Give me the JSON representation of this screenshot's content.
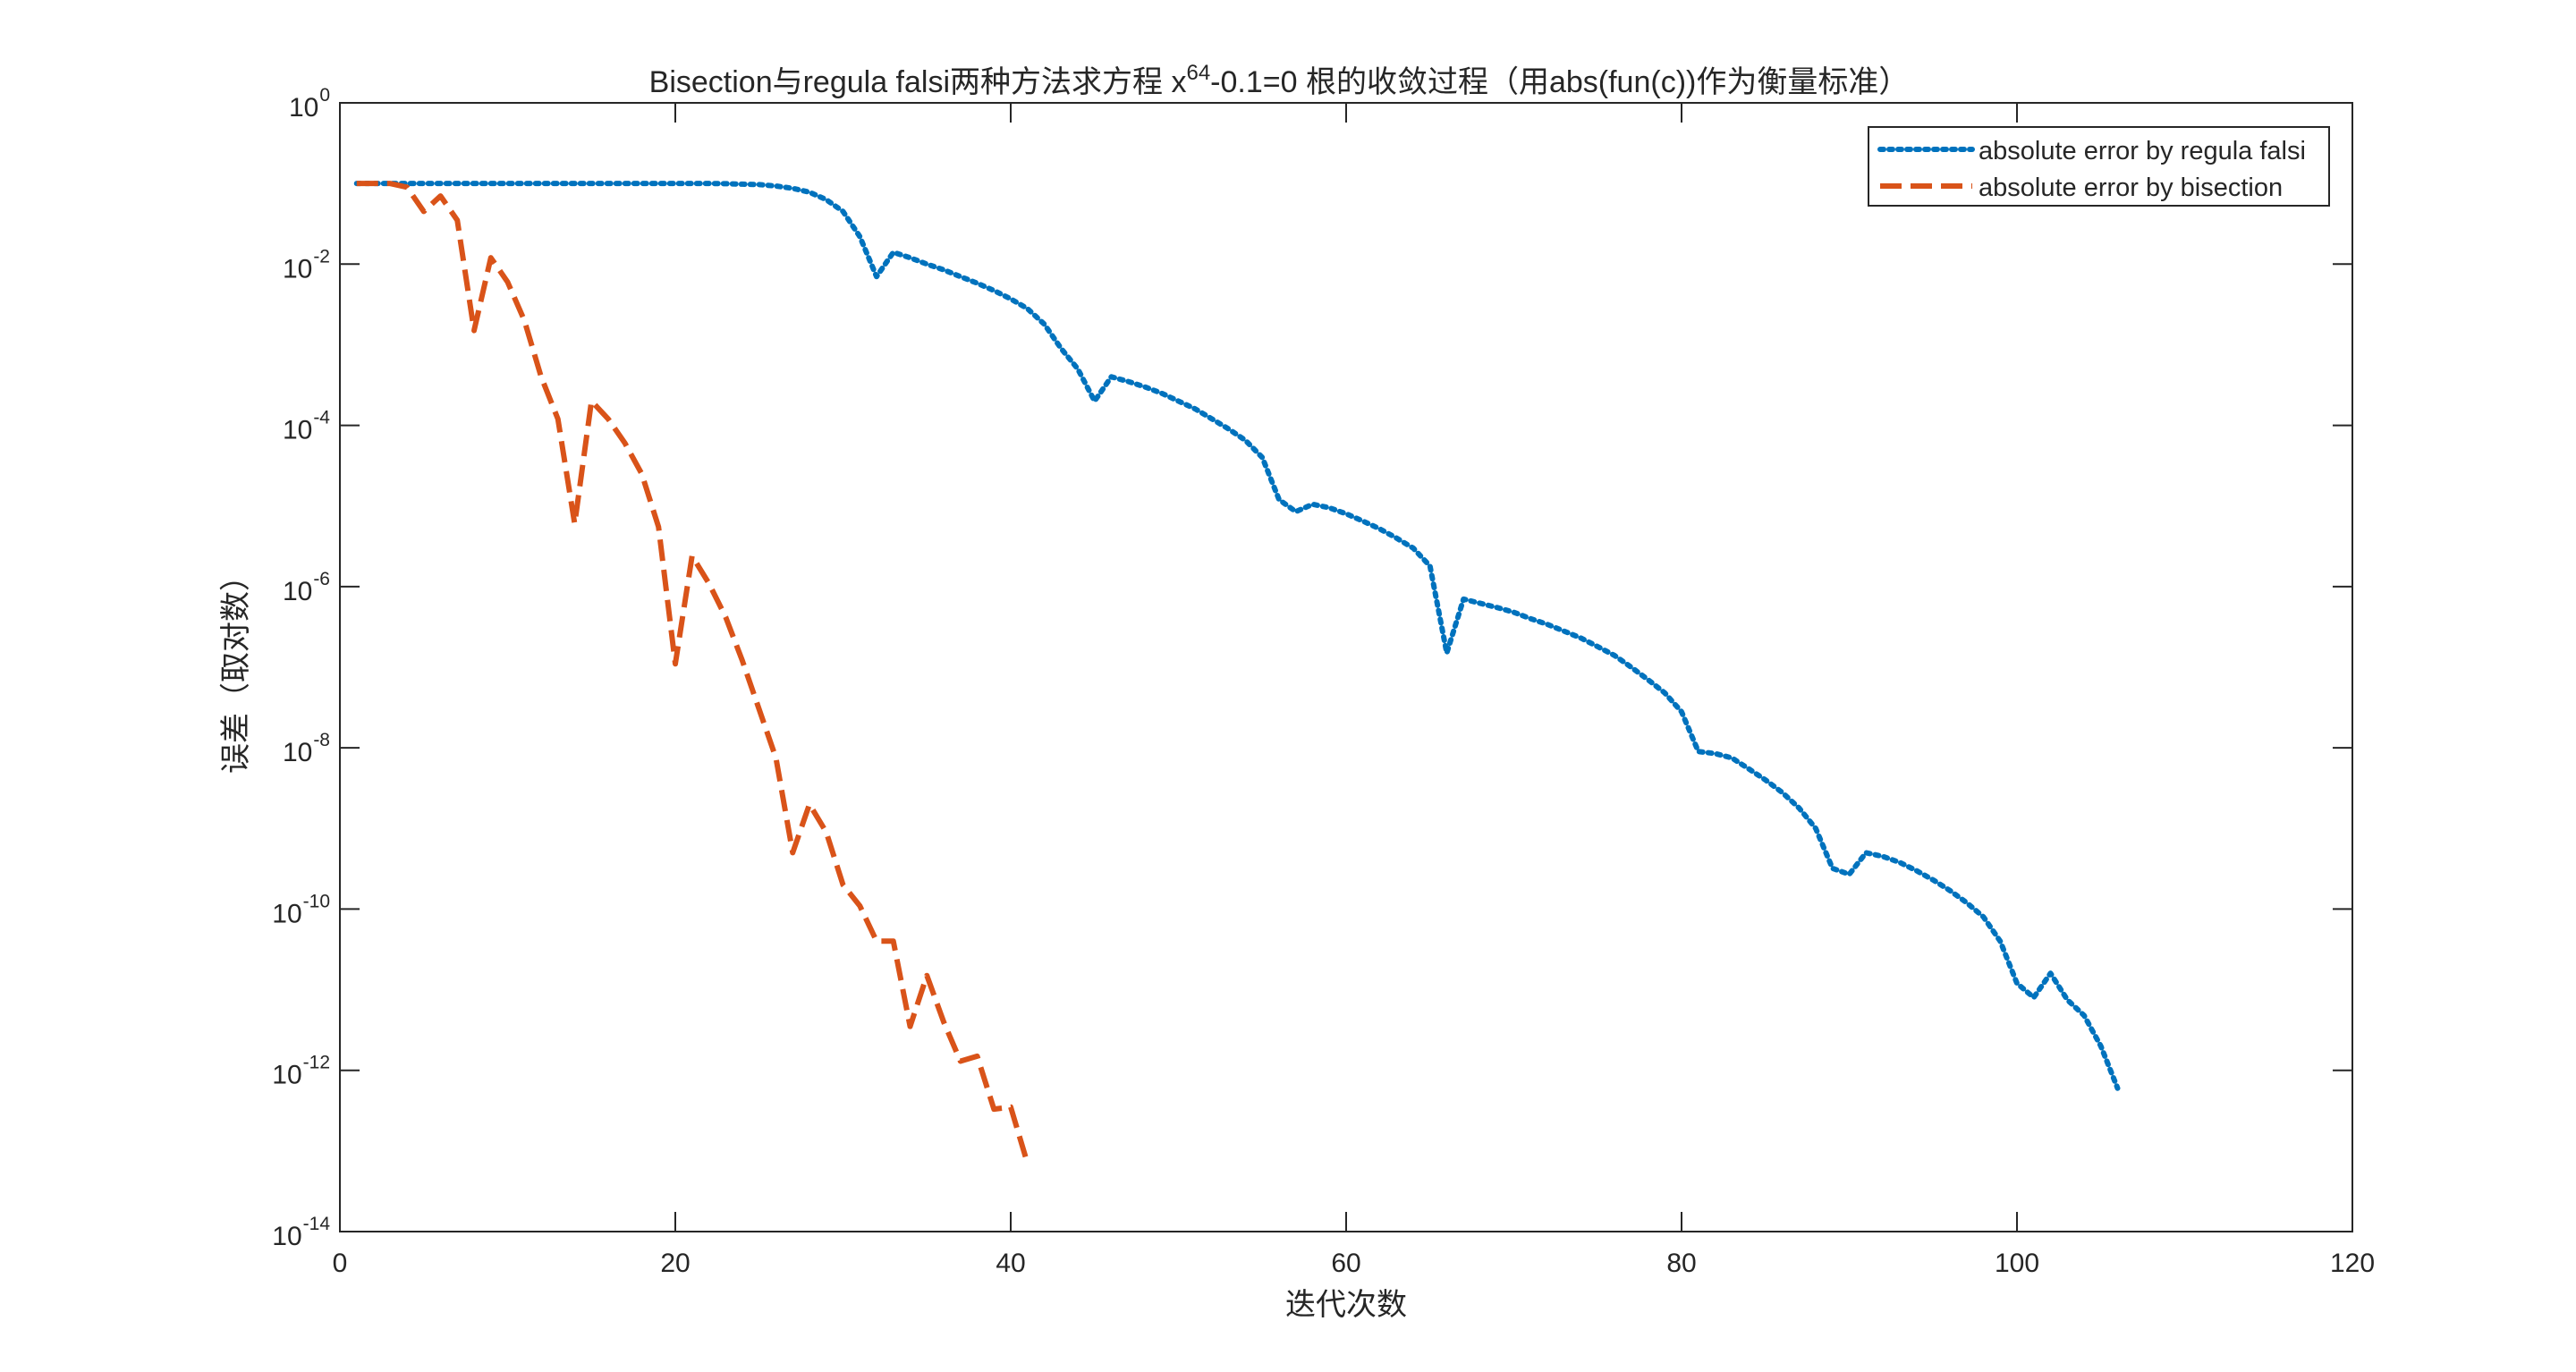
{
  "chart_data": {
    "type": "line",
    "title_prefix": "Bisection与regula falsi两种方法求方程 x",
    "title_exponent": "64",
    "title_suffix": "-0.1=0 根的收敛过程（用abs(fun(c))作为衡量标准）",
    "xlabel": "迭代次数",
    "ylabel": "误差（取对数）",
    "xlim": [
      0,
      120
    ],
    "ylim": [
      1e-14,
      1
    ],
    "yscale": "log",
    "grid": false,
    "legend_position": "top-right",
    "x_ticks": [
      0,
      20,
      40,
      60,
      80,
      100,
      120
    ],
    "y_tick_base": "10",
    "y_tick_exponents": [
      "0",
      "-2",
      "-4",
      "-6",
      "-8",
      "-10",
      "-12",
      "-14"
    ],
    "series": [
      {
        "name": "absolute error by regula falsi",
        "color": "#0072BD",
        "line_style": "dotted",
        "x": [
          1,
          2,
          3,
          4,
          5,
          6,
          7,
          8,
          9,
          10,
          11,
          12,
          13,
          14,
          15,
          16,
          17,
          18,
          19,
          20,
          21,
          22,
          23,
          24,
          25,
          26,
          27,
          28,
          29,
          30,
          31,
          32,
          33,
          34,
          35,
          36,
          37,
          38,
          39,
          40,
          41,
          42,
          43,
          44,
          45,
          46,
          47,
          48,
          49,
          50,
          51,
          52,
          53,
          54,
          55,
          56,
          57,
          58,
          59,
          60,
          61,
          62,
          63,
          64,
          65,
          66,
          67,
          68,
          69,
          70,
          71,
          72,
          73,
          74,
          75,
          76,
          77,
          78,
          79,
          80,
          81,
          82,
          83,
          84,
          85,
          86,
          87,
          88,
          89,
          90,
          91,
          92,
          93,
          94,
          95,
          96,
          97,
          98,
          99,
          100,
          101,
          102,
          103,
          104,
          105,
          106
        ],
        "y": [
          0.1,
          0.1,
          0.1,
          0.1,
          0.1,
          0.1,
          0.1,
          0.1,
          0.1,
          0.1,
          0.1,
          0.1,
          0.1,
          0.1,
          0.1,
          0.1,
          0.1,
          0.1,
          0.1,
          0.1,
          0.1,
          0.1,
          0.0995,
          0.098,
          0.097,
          0.093,
          0.087,
          0.078,
          0.063,
          0.045,
          0.022,
          0.007,
          0.014,
          0.012,
          0.01,
          0.0085,
          0.007,
          0.0058,
          0.0047,
          0.0037,
          0.0028,
          0.0018,
          0.0009,
          0.0005,
          0.0002,
          0.0004,
          0.00035,
          0.0003,
          0.00025,
          0.0002,
          0.00016,
          0.00012,
          9e-05,
          6.5e-05,
          4e-05,
          1.2e-05,
          8.5e-06,
          1.05e-05,
          9.5e-06,
          8e-06,
          6.5e-06,
          5.2e-06,
          4e-06,
          3e-06,
          1.8e-06,
          1.5e-07,
          7e-07,
          6.2e-07,
          5.5e-07,
          4.8e-07,
          4e-07,
          3.4e-07,
          2.8e-07,
          2.3e-07,
          1.8e-07,
          1.4e-07,
          1e-07,
          7e-08,
          4.8e-08,
          2.8e-08,
          9e-09,
          8.5e-09,
          7.5e-09,
          5.5e-09,
          4e-09,
          2.8e-09,
          1.8e-09,
          1e-09,
          3.2e-10,
          2.7e-10,
          5e-10,
          4.5e-10,
          3.8e-10,
          3e-10,
          2.3e-10,
          1.7e-10,
          1.2e-10,
          8e-11,
          4e-11,
          1.2e-11,
          8e-12,
          1.6e-11,
          7.5e-12,
          4.8e-12,
          2e-12,
          6e-13
        ]
      },
      {
        "name": "absolute error by bisection",
        "color": "#D95319",
        "line_style": "dashed",
        "x": [
          1,
          2,
          3,
          4,
          5,
          6,
          7,
          8,
          9,
          10,
          11,
          12,
          13,
          14,
          15,
          16,
          17,
          18,
          19,
          20,
          21,
          22,
          23,
          24,
          25,
          26,
          27,
          28,
          29,
          30,
          31,
          32,
          33,
          34,
          35,
          36,
          37,
          38,
          39,
          40,
          41
        ],
        "y": [
          0.1,
          0.1,
          0.1,
          0.09,
          0.045,
          0.07,
          0.035,
          0.0015,
          0.012,
          0.006,
          0.002,
          0.0004,
          0.00012,
          6e-06,
          0.0002,
          0.00012,
          6e-05,
          2.5e-05,
          5.5e-06,
          1.1e-07,
          2.4e-06,
          1.1e-06,
          4.2e-07,
          1.2e-07,
          3e-08,
          7.5e-09,
          5e-10,
          2e-09,
          9e-10,
          2e-10,
          1.1e-10,
          4e-11,
          4e-11,
          3.5e-12,
          1.5e-11,
          4e-12,
          1.3e-12,
          1.5e-12,
          3.3e-13,
          3.5e-13,
          7e-14
        ]
      }
    ]
  }
}
